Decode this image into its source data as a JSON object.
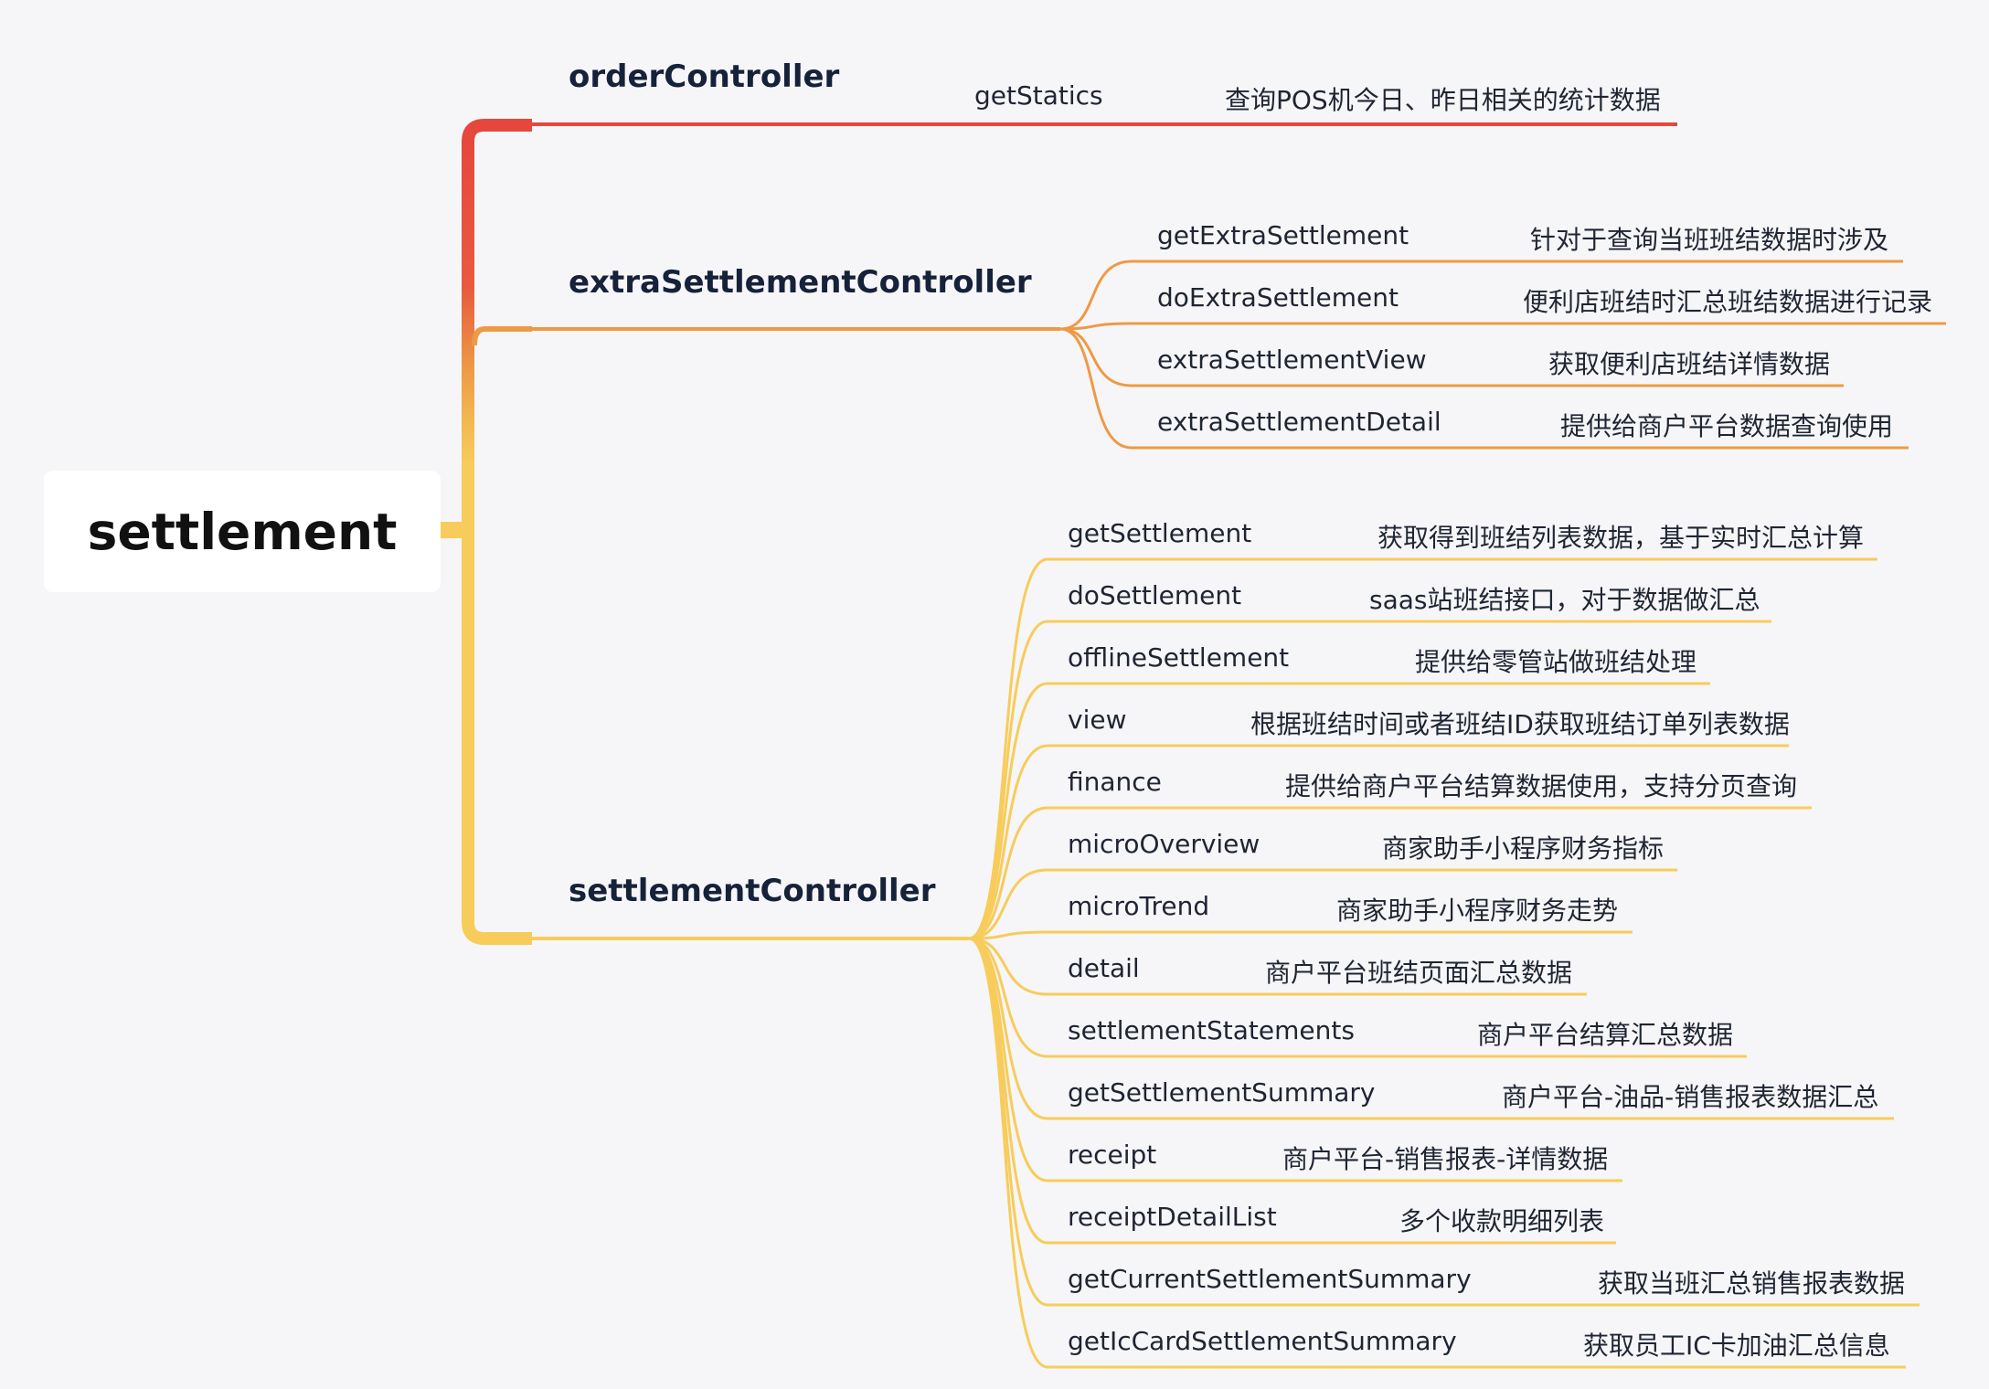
{
  "root": {
    "label": "settlement"
  },
  "branches": [
    {
      "label": "orderController",
      "color": "#e5473d",
      "children": [
        {
          "name": "getStatics",
          "desc": "查询POS机今日、昨日相关的统计数据"
        }
      ]
    },
    {
      "label": "extraSettlementController",
      "color": "#ee9a45",
      "children": [
        {
          "name": "getExtraSettlement",
          "desc": "针对于查询当班班结数据时涉及"
        },
        {
          "name": "doExtraSettlement",
          "desc": "便利店班结时汇总班结数据进行记录"
        },
        {
          "name": "extraSettlementView",
          "desc": "获取便利店班结详情数据"
        },
        {
          "name": "extraSettlementDetail",
          "desc": "提供给商户平台数据查询使用"
        }
      ]
    },
    {
      "label": "settlementController",
      "color": "#f8cc5b",
      "children": [
        {
          "name": "getSettlement",
          "desc": "获取得到班结列表数据，基于实时汇总计算"
        },
        {
          "name": "doSettlement",
          "desc": "saas站班结接口，对于数据做汇总"
        },
        {
          "name": "offlineSettlement",
          "desc": "提供给零管站做班结处理"
        },
        {
          "name": "view",
          "desc": "根据班结时间或者班结ID获取班结订单列表数据"
        },
        {
          "name": "finance",
          "desc": "提供给商户平台结算数据使用，支持分页查询"
        },
        {
          "name": "microOverview",
          "desc": "商家助手小程序财务指标"
        },
        {
          "name": "microTrend",
          "desc": "商家助手小程序财务走势"
        },
        {
          "name": "detail",
          "desc": "商户平台班结页面汇总数据"
        },
        {
          "name": "settlementStatements",
          "desc": "商户平台结算汇总数据"
        },
        {
          "name": "getSettlementSummary",
          "desc": "商户平台-油品-销售报表数据汇总"
        },
        {
          "name": "receipt",
          "desc": "商户平台-销售报表-详情数据"
        },
        {
          "name": "receiptDetailList",
          "desc": "多个收款明细列表"
        },
        {
          "name": "getCurrentSettlementSummary",
          "desc": "获取当班汇总销售报表数据"
        },
        {
          "name": "getIcCardSettlementSummary",
          "desc": "获取员工IC卡加油汇总信息"
        }
      ]
    }
  ]
}
